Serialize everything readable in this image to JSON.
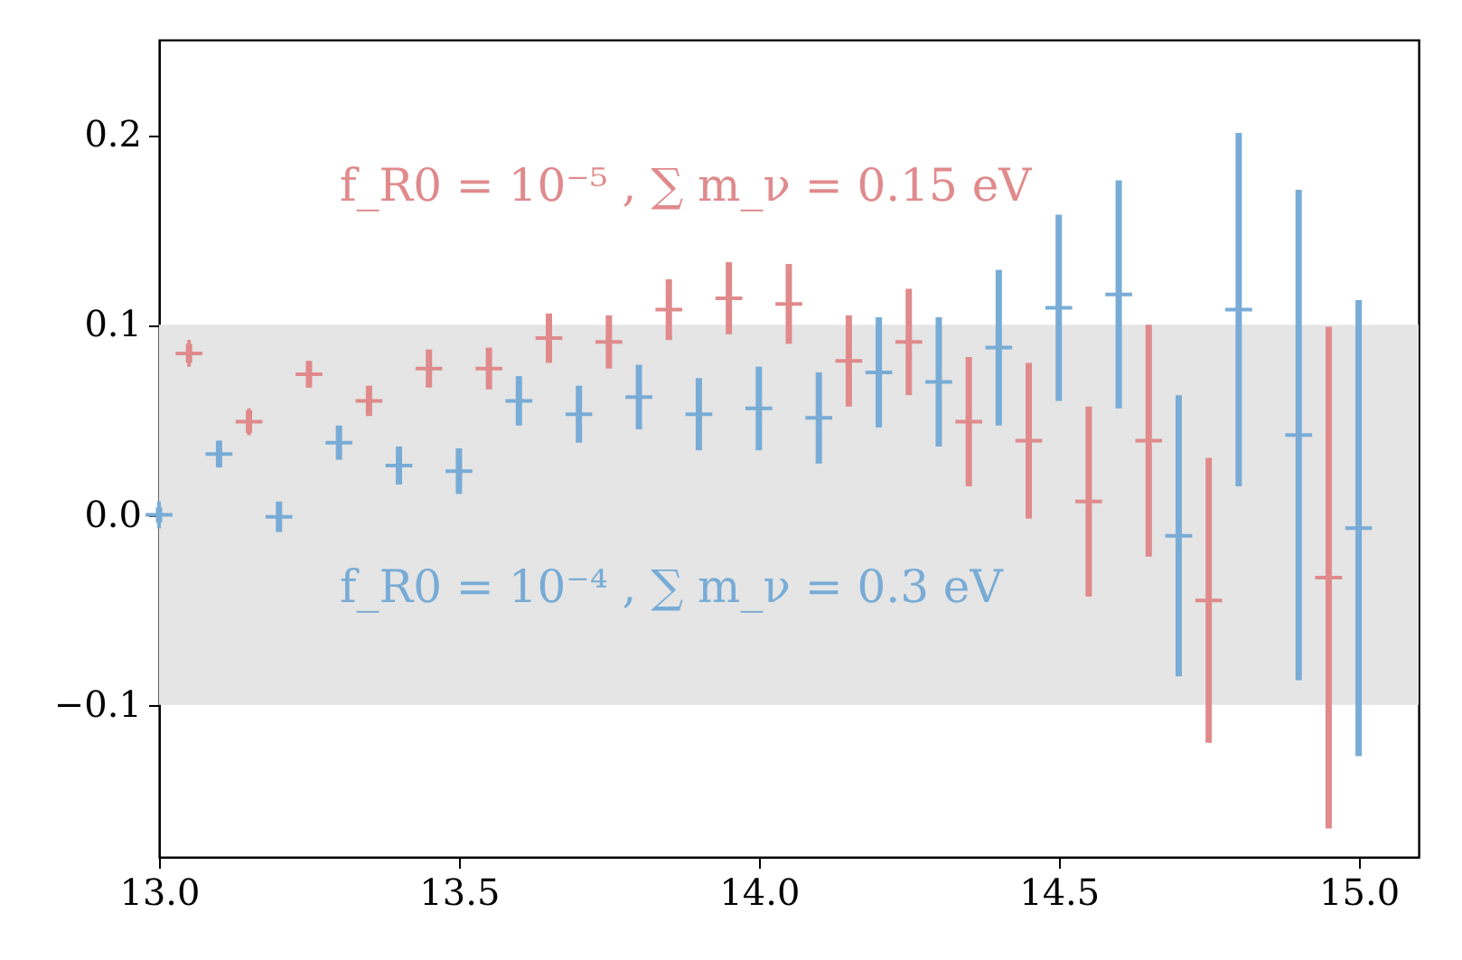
{
  "chart_data": {
    "type": "scatter",
    "marker": "cross",
    "grid": false,
    "xlim": [
      13.0,
      15.1
    ],
    "xticks": [
      {
        "value": 13.0,
        "label": "13.0"
      },
      {
        "value": 13.5,
        "label": "13.5"
      },
      {
        "value": 14.0,
        "label": "14.0"
      },
      {
        "value": 14.5,
        "label": "14.5"
      },
      {
        "value": 15.0,
        "label": "15.0"
      }
    ],
    "ylim": [
      -0.18,
      0.25
    ],
    "yticks": [
      {
        "value": -0.1,
        "label": "−0.1"
      },
      {
        "value": 0.0,
        "label": "0.0"
      },
      {
        "value": 0.1,
        "label": "0.1"
      },
      {
        "value": 0.2,
        "label": "0.2"
      }
    ],
    "bands": [
      {
        "axis": "y",
        "from": -0.1,
        "to": 0.1,
        "color": "#e5e5e5"
      }
    ],
    "series": [
      {
        "name": "f_R0 = 10⁻⁵ , ∑ m_ν = 0.15 eV",
        "color": "#e08a8c",
        "x": [
          13.05,
          13.15,
          13.25,
          13.35,
          13.45,
          13.55,
          13.65,
          13.75,
          13.85,
          13.95,
          14.05,
          14.15,
          14.25,
          14.35,
          14.45,
          14.55,
          14.65,
          14.75,
          14.95
        ],
        "values": [
          0.085,
          0.049,
          0.074,
          0.06,
          0.077,
          0.077,
          0.093,
          0.091,
          0.108,
          0.114,
          0.111,
          0.081,
          0.091,
          0.049,
          0.039,
          0.007,
          0.039,
          -0.045,
          -0.033
        ],
        "errors": [
          0.005,
          0.006,
          0.007,
          0.008,
          0.01,
          0.011,
          0.013,
          0.014,
          0.016,
          0.019,
          0.021,
          0.024,
          0.028,
          0.034,
          0.041,
          0.05,
          0.061,
          0.075,
          0.132
        ]
      },
      {
        "name": "f_R0 = 10⁻⁴ , ∑ m_ν = 0.3 eV",
        "color": "#78acd6",
        "x": [
          13.0,
          13.1,
          13.2,
          13.3,
          13.4,
          13.5,
          13.6,
          13.7,
          13.8,
          13.9,
          14.0,
          14.1,
          14.2,
          14.3,
          14.4,
          14.5,
          14.6,
          14.7,
          14.8,
          14.9,
          15.0
        ],
        "values": [
          0.0,
          0.032,
          -0.001,
          0.038,
          0.026,
          0.023,
          0.06,
          0.053,
          0.062,
          0.053,
          0.056,
          0.051,
          0.075,
          0.07,
          0.088,
          0.109,
          0.116,
          -0.011,
          0.108,
          0.042,
          -0.007
        ],
        "errors": [
          0.004,
          0.007,
          0.008,
          0.009,
          0.01,
          0.012,
          0.013,
          0.015,
          0.017,
          0.019,
          0.022,
          0.024,
          0.029,
          0.034,
          0.041,
          0.049,
          0.06,
          0.074,
          0.093,
          0.129,
          0.12
        ]
      }
    ]
  }
}
